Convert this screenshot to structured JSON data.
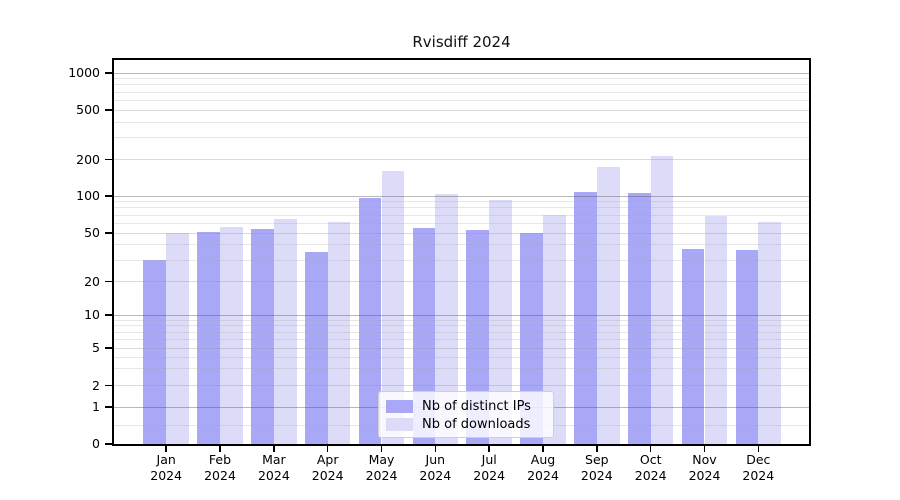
{
  "chart_data": {
    "type": "bar",
    "title": "Rvisdiff 2024",
    "categories": [
      "Jan",
      "Feb",
      "Mar",
      "Apr",
      "May",
      "Jun",
      "Jul",
      "Aug",
      "Sep",
      "Oct",
      "Nov",
      "Dec"
    ],
    "category_year": "2024",
    "series": [
      {
        "name": "Nb of distinct IPs",
        "color": "#a8a8f7",
        "values": [
          30,
          51,
          54,
          35,
          96,
          55,
          53,
          50,
          108,
          106,
          37,
          36
        ]
      },
      {
        "name": "Nb of downloads",
        "color": "#dcdcf9",
        "values": [
          50,
          56,
          65,
          62,
          160,
          104,
          93,
          70,
          175,
          214,
          69,
          61
        ]
      }
    ],
    "y_axis": {
      "scale": "log-like",
      "tick_values": [
        0,
        1,
        2,
        5,
        10,
        20,
        50,
        100,
        200,
        500,
        1000
      ],
      "tick_labels": [
        "0",
        "1",
        "2",
        "5",
        "10",
        "20",
        "50",
        "100",
        "200",
        "500",
        "1000"
      ],
      "range": [
        0,
        1000
      ]
    },
    "x_axis": {
      "label_format": "month-over-year"
    },
    "legend": {
      "position": "bottom-center",
      "entries": [
        "Nb of distinct IPs",
        "Nb of downloads"
      ]
    },
    "grid": true
  }
}
